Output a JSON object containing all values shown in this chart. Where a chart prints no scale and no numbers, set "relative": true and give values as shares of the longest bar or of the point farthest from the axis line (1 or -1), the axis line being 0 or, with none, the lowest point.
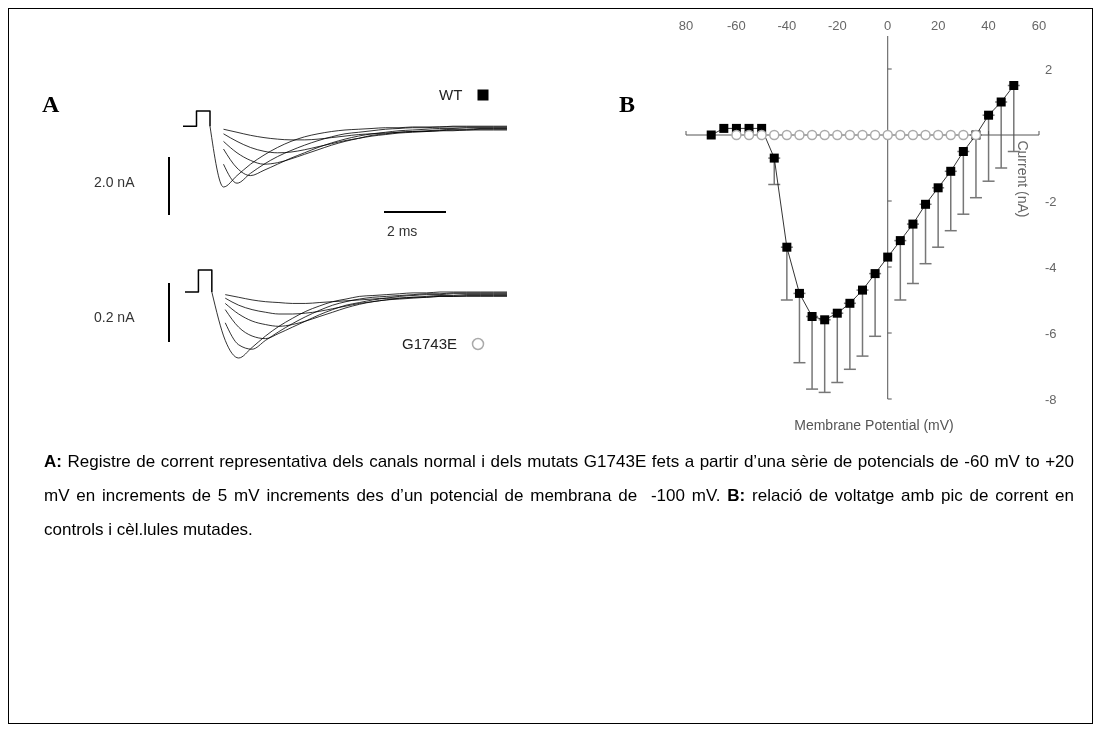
{
  "chart_data": [
    {
      "type": "line",
      "title": "A",
      "relative": true,
      "categories": [
        null,
        null,
        null,
        null,
        null,
        null,
        null,
        null,
        null,
        null,
        null,
        null,
        null,
        null,
        null,
        null,
        null,
        null,
        null,
        null,
        null,
        null,
        null,
        null,
        null
      ],
      "series": [
        {
          "type": "step",
          "color": "#000000",
          "values": [
            0.8,
            1,
            0.8,
            null,
            null,
            null,
            null,
            null,
            null,
            null,
            null,
            null,
            null,
            null,
            null,
            null,
            null,
            null,
            null,
            null,
            null,
            null,
            null,
            null,
            null
          ]
        },
        {
          "color": "#000000",
          "values": [
            null,
            null,
            0.8,
            0.0,
            0.15,
            0.3,
            0.42,
            0.52,
            0.6,
            0.66,
            0.7,
            0.73,
            0.75,
            0.76,
            0.77,
            0.78,
            0.78,
            0.79,
            0.79,
            0.79,
            0.8,
            0.8,
            0.8,
            0.8,
            0.8
          ]
        },
        {
          "color": "#000000",
          "values": [
            null,
            null,
            null,
            0.3,
            0.05,
            0.18,
            0.3,
            0.4,
            0.48,
            0.55,
            0.61,
            0.66,
            0.7,
            0.72,
            0.74,
            0.76,
            0.77,
            0.78,
            0.78,
            0.79,
            0.79,
            0.79,
            0.79,
            0.79,
            0.79
          ]
        },
        {
          "color": "#000000",
          "values": [
            null,
            null,
            null,
            0.5,
            0.25,
            0.15,
            0.22,
            0.3,
            0.38,
            0.45,
            0.52,
            0.58,
            0.63,
            0.67,
            0.7,
            0.72,
            0.74,
            0.75,
            0.76,
            0.77,
            0.77,
            0.78,
            0.78,
            0.78,
            0.78
          ]
        },
        {
          "color": "#000000",
          "values": [
            null,
            null,
            null,
            0.6,
            0.45,
            0.35,
            0.3,
            0.32,
            0.37,
            0.43,
            0.49,
            0.55,
            0.6,
            0.64,
            0.68,
            0.7,
            0.72,
            0.73,
            0.74,
            0.75,
            0.76,
            0.76,
            0.77,
            0.77,
            0.77
          ]
        },
        {
          "color": "#000000",
          "values": [
            null,
            null,
            null,
            0.7,
            0.6,
            0.52,
            0.47,
            0.45,
            0.46,
            0.49,
            0.53,
            0.57,
            0.61,
            0.64,
            0.67,
            0.69,
            0.71,
            0.72,
            0.73,
            0.74,
            0.75,
            0.75,
            0.76,
            0.76,
            0.76
          ]
        },
        {
          "color": "#000000",
          "values": [
            null,
            null,
            null,
            0.76,
            0.72,
            0.68,
            0.65,
            0.63,
            0.62,
            0.62,
            0.63,
            0.65,
            0.67,
            0.69,
            0.7,
            0.71,
            0.72,
            0.73,
            0.73,
            0.74,
            0.74,
            0.75,
            0.75,
            0.75,
            0.75
          ]
        }
      ],
      "annotations": [
        "2.0 nA",
        "2 ms"
      ]
    },
    {
      "type": "line",
      "relative": true,
      "categories": [
        null,
        null,
        null,
        null,
        null,
        null,
        null,
        null,
        null,
        null,
        null,
        null,
        null,
        null,
        null,
        null,
        null,
        null,
        null,
        null,
        null,
        null,
        null,
        null,
        null
      ],
      "series": [
        {
          "type": "step",
          "color": "#000000",
          "values": [
            0.75,
            1,
            0.75,
            null,
            null,
            null,
            null,
            null,
            null,
            null,
            null,
            null,
            null,
            null,
            null,
            null,
            null,
            null,
            null,
            null,
            null,
            null,
            null,
            null,
            null
          ]
        },
        {
          "color": "#000000",
          "values": [
            null,
            null,
            0.75,
            0.2,
            0.0,
            0.12,
            0.25,
            0.36,
            0.45,
            0.53,
            0.59,
            0.64,
            0.67,
            0.7,
            0.71,
            0.72,
            0.73,
            0.74,
            0.74,
            0.75,
            0.75,
            0.75,
            0.75,
            0.75,
            0.75
          ]
        },
        {
          "color": "#000000",
          "values": [
            null,
            null,
            null,
            0.4,
            0.15,
            0.1,
            0.2,
            0.3,
            0.39,
            0.47,
            0.54,
            0.6,
            0.64,
            0.67,
            0.69,
            0.7,
            0.71,
            0.72,
            0.73,
            0.73,
            0.74,
            0.74,
            0.74,
            0.74,
            0.74
          ]
        },
        {
          "color": "#000000",
          "values": [
            null,
            null,
            null,
            0.55,
            0.35,
            0.25,
            0.22,
            0.28,
            0.35,
            0.42,
            0.49,
            0.55,
            0.6,
            0.63,
            0.66,
            0.68,
            0.7,
            0.71,
            0.72,
            0.72,
            0.73,
            0.73,
            0.73,
            0.73,
            0.73
          ]
        },
        {
          "color": "#000000",
          "values": [
            null,
            null,
            null,
            0.62,
            0.5,
            0.42,
            0.38,
            0.36,
            0.38,
            0.42,
            0.47,
            0.52,
            0.57,
            0.61,
            0.64,
            0.66,
            0.68,
            0.69,
            0.7,
            0.71,
            0.71,
            0.72,
            0.72,
            0.72,
            0.72
          ]
        },
        {
          "color": "#000000",
          "values": [
            null,
            null,
            null,
            0.68,
            0.6,
            0.55,
            0.52,
            0.5,
            0.5,
            0.51,
            0.53,
            0.56,
            0.59,
            0.62,
            0.64,
            0.66,
            0.67,
            0.68,
            0.69,
            0.7,
            0.7,
            0.71,
            0.71,
            0.71,
            0.71
          ]
        },
        {
          "color": "#000000",
          "values": [
            null,
            null,
            null,
            0.72,
            0.69,
            0.66,
            0.64,
            0.63,
            0.62,
            0.62,
            0.63,
            0.64,
            0.65,
            0.66,
            0.67,
            0.68,
            0.68,
            0.69,
            0.69,
            0.7,
            0.7,
            0.7,
            0.7,
            0.7,
            0.7
          ]
        }
      ],
      "annotations": [
        "0.2 nA"
      ]
    },
    {
      "type": "line",
      "title": "B",
      "xlabel": "Membrane Potential (mV)",
      "ylabel": "Current (nA)",
      "xlim": [
        -80,
        60
      ],
      "xticks": [
        {
          "value": -80,
          "label": "80"
        },
        -60,
        -40,
        -20,
        0,
        20,
        40,
        60
      ],
      "ylim": [
        -8,
        3
      ],
      "yticks": [
        -8,
        -6,
        -4,
        -2,
        {
          "value": 0,
          "label": null
        },
        2
      ],
      "legend": "left",
      "series": [
        {
          "name": "WT",
          "color": "#000000",
          "marker": "square",
          "x": [
            -70,
            -65,
            -60,
            -55,
            -50,
            -45,
            -40,
            -35,
            -30,
            -25,
            -20,
            -15,
            -10,
            -5,
            0,
            5,
            10,
            15,
            20,
            25,
            30,
            35,
            40,
            45,
            50
          ],
          "values": [
            0,
            0.2,
            0.2,
            0.2,
            0.2,
            -0.7,
            -3.4,
            -4.8,
            -5.5,
            -5.6,
            -5.4,
            -5.1,
            -4.7,
            -4.2,
            -3.7,
            -3.2,
            -2.7,
            -2.1,
            -1.6,
            -1.1,
            -0.5,
            0,
            0.6,
            1.0,
            1.5
          ],
          "errors": [
            null,
            null,
            null,
            null,
            null,
            [
              -1.5,
              -0.7
            ],
            [
              -5.0,
              -3.4
            ],
            [
              -6.9,
              -4.8
            ],
            [
              -7.7,
              -5.5
            ],
            [
              -7.8,
              -5.6
            ],
            [
              -7.5,
              -5.4
            ],
            [
              -7.1,
              -5.1
            ],
            [
              -6.7,
              -4.7
            ],
            [
              -6.1,
              -4.2
            ],
            null,
            [
              -5.0,
              -3.2
            ],
            [
              -4.5,
              -2.7
            ],
            [
              -3.9,
              -2.1
            ],
            [
              -3.4,
              -1.6
            ],
            [
              -2.9,
              -1.1
            ],
            [
              -2.4,
              -0.5
            ],
            [
              -1.9,
              0
            ],
            [
              -1.4,
              0.6
            ],
            [
              -1.0,
              1.0
            ],
            [
              -0.5,
              1.5
            ]
          ]
        },
        {
          "name": "G1743E",
          "type": "scatter",
          "color": "#aaaaaa",
          "marker": "circle",
          "x": [
            -60,
            -55,
            -50,
            -45,
            -40,
            -35,
            -30,
            -25,
            -20,
            -15,
            -10,
            -5,
            0,
            5,
            10,
            15,
            20,
            25,
            30,
            35
          ],
          "values": [
            0,
            0,
            0,
            0,
            0,
            0,
            0,
            0,
            0,
            0,
            0,
            0,
            0,
            0,
            0,
            0,
            0,
            0,
            0,
            0
          ]
        }
      ],
      "annotations": [
        "A:",
        " Registre de corrent representativa dels canals normal i dels mutats G1743E fets a partir d’una sèrie de potencials de -60 mV to +20 mV en increments de 5 mV increments des d’un potencial de membrana de  -100 mV. ",
        "B:",
        " relació de voltatge amb pic de corrent en controls i cèl.lules mutades."
      ]
    }
  ]
}
